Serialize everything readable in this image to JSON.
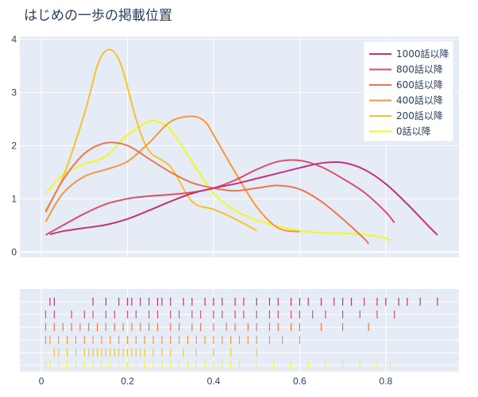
{
  "chart_data": {
    "type": "line",
    "title": "はじめの一歩の掲載位置",
    "xlabel": "",
    "ylabel": "",
    "xlim": [
      -0.05,
      0.97
    ],
    "ylim": [
      -0.1,
      4.05
    ],
    "x_ticks": [
      "0",
      "0.2",
      "0.4",
      "0.6",
      "0.8"
    ],
    "y_ticks": [
      "0",
      "1",
      "2",
      "3",
      "4"
    ],
    "grid": true,
    "legend_position": "top-right",
    "series": [
      {
        "name": "1000話以降",
        "color": "#c5307a",
        "x": [
          0.02,
          0.05,
          0.1,
          0.15,
          0.2,
          0.25,
          0.3,
          0.35,
          0.4,
          0.45,
          0.5,
          0.55,
          0.6,
          0.65,
          0.7,
          0.75,
          0.8,
          0.85,
          0.9,
          0.92
        ],
        "y": [
          0.33,
          0.39,
          0.45,
          0.51,
          0.62,
          0.78,
          0.95,
          1.1,
          1.2,
          1.28,
          1.38,
          1.48,
          1.58,
          1.67,
          1.68,
          1.55,
          1.28,
          0.9,
          0.48,
          0.32
        ],
        "rug": [
          0.02,
          0.03,
          0.12,
          0.15,
          0.18,
          0.2,
          0.21,
          0.23,
          0.25,
          0.27,
          0.28,
          0.3,
          0.33,
          0.35,
          0.38,
          0.4,
          0.42,
          0.45,
          0.47,
          0.5,
          0.53,
          0.55,
          0.58,
          0.6,
          0.62,
          0.65,
          0.68,
          0.7,
          0.72,
          0.75,
          0.78,
          0.8,
          0.83,
          0.85,
          0.88,
          0.92
        ]
      },
      {
        "name": "800話以降",
        "color": "#dd4d6c",
        "x": [
          0.01,
          0.05,
          0.1,
          0.15,
          0.2,
          0.25,
          0.3,
          0.35,
          0.4,
          0.45,
          0.5,
          0.55,
          0.6,
          0.65,
          0.7,
          0.75,
          0.8,
          0.82
        ],
        "y": [
          0.32,
          0.5,
          0.72,
          0.9,
          1.0,
          1.05,
          1.08,
          1.12,
          1.2,
          1.35,
          1.55,
          1.7,
          1.72,
          1.6,
          1.38,
          1.12,
          0.75,
          0.55
        ],
        "rug": [
          0.01,
          0.03,
          0.07,
          0.1,
          0.12,
          0.15,
          0.17,
          0.2,
          0.22,
          0.25,
          0.27,
          0.3,
          0.32,
          0.35,
          0.37,
          0.4,
          0.42,
          0.45,
          0.47,
          0.5,
          0.53,
          0.55,
          0.58,
          0.6,
          0.63,
          0.66,
          0.7,
          0.74,
          0.78,
          0.82
        ]
      },
      {
        "name": "600話以降",
        "color": "#f0744d",
        "x": [
          0.01,
          0.05,
          0.1,
          0.15,
          0.2,
          0.25,
          0.3,
          0.35,
          0.4,
          0.45,
          0.5,
          0.55,
          0.6,
          0.65,
          0.7,
          0.75,
          0.76
        ],
        "y": [
          0.75,
          1.35,
          1.85,
          2.05,
          2.0,
          1.75,
          1.5,
          1.3,
          1.2,
          1.15,
          1.2,
          1.25,
          1.18,
          0.95,
          0.62,
          0.25,
          0.15
        ],
        "rug": [
          0.01,
          0.03,
          0.05,
          0.07,
          0.09,
          0.11,
          0.13,
          0.15,
          0.17,
          0.19,
          0.21,
          0.23,
          0.25,
          0.27,
          0.3,
          0.32,
          0.35,
          0.37,
          0.4,
          0.43,
          0.45,
          0.48,
          0.5,
          0.53,
          0.55,
          0.58,
          0.6,
          0.65,
          0.7,
          0.76
        ]
      },
      {
        "name": "400話以降",
        "color": "#f9963a",
        "x": [
          0.01,
          0.05,
          0.1,
          0.15,
          0.2,
          0.25,
          0.3,
          0.35,
          0.38,
          0.4,
          0.45,
          0.5,
          0.55,
          0.6
        ],
        "y": [
          0.57,
          1.1,
          1.42,
          1.55,
          1.7,
          2.05,
          2.45,
          2.55,
          2.45,
          2.2,
          1.5,
          0.85,
          0.45,
          0.38
        ],
        "rug": [
          0.01,
          0.02,
          0.04,
          0.06,
          0.08,
          0.1,
          0.12,
          0.14,
          0.16,
          0.18,
          0.2,
          0.22,
          0.24,
          0.26,
          0.28,
          0.3,
          0.32,
          0.34,
          0.36,
          0.38,
          0.4,
          0.42,
          0.44,
          0.46,
          0.48,
          0.5,
          0.53,
          0.56,
          0.6
        ]
      },
      {
        "name": "200話以降",
        "color": "#f8c12b",
        "x": [
          0.01,
          0.05,
          0.1,
          0.13,
          0.15,
          0.17,
          0.19,
          0.22,
          0.25,
          0.3,
          0.35,
          0.4,
          0.45,
          0.5
        ],
        "y": [
          0.78,
          1.4,
          2.6,
          3.5,
          3.78,
          3.75,
          3.4,
          2.5,
          1.9,
          1.6,
          0.95,
          0.8,
          0.62,
          0.4
        ],
        "rug": [
          0.03,
          0.04,
          0.06,
          0.08,
          0.1,
          0.11,
          0.12,
          0.13,
          0.14,
          0.15,
          0.16,
          0.17,
          0.18,
          0.19,
          0.2,
          0.21,
          0.22,
          0.23,
          0.24,
          0.26,
          0.28,
          0.3,
          0.33,
          0.36,
          0.4,
          0.44,
          0.5
        ]
      },
      {
        "name": "0話以降",
        "color": "#f0f921",
        "x": [
          0.01,
          0.05,
          0.1,
          0.15,
          0.2,
          0.25,
          0.27,
          0.3,
          0.35,
          0.4,
          0.45,
          0.5,
          0.55,
          0.6,
          0.65,
          0.7,
          0.75,
          0.8,
          0.81
        ],
        "y": [
          1.1,
          1.45,
          1.65,
          1.8,
          2.2,
          2.45,
          2.45,
          2.3,
          1.7,
          1.1,
          0.78,
          0.6,
          0.48,
          0.4,
          0.36,
          0.35,
          0.33,
          0.26,
          0.2
        ],
        "rug": [
          0.01,
          0.02,
          0.04,
          0.06,
          0.08,
          0.1,
          0.12,
          0.14,
          0.16,
          0.18,
          0.2,
          0.22,
          0.24,
          0.26,
          0.28,
          0.3,
          0.32,
          0.34,
          0.36,
          0.38,
          0.4,
          0.42,
          0.44,
          0.46,
          0.5,
          0.54,
          0.58,
          0.62,
          0.66,
          0.7,
          0.74,
          0.78,
          0.81
        ]
      }
    ]
  }
}
